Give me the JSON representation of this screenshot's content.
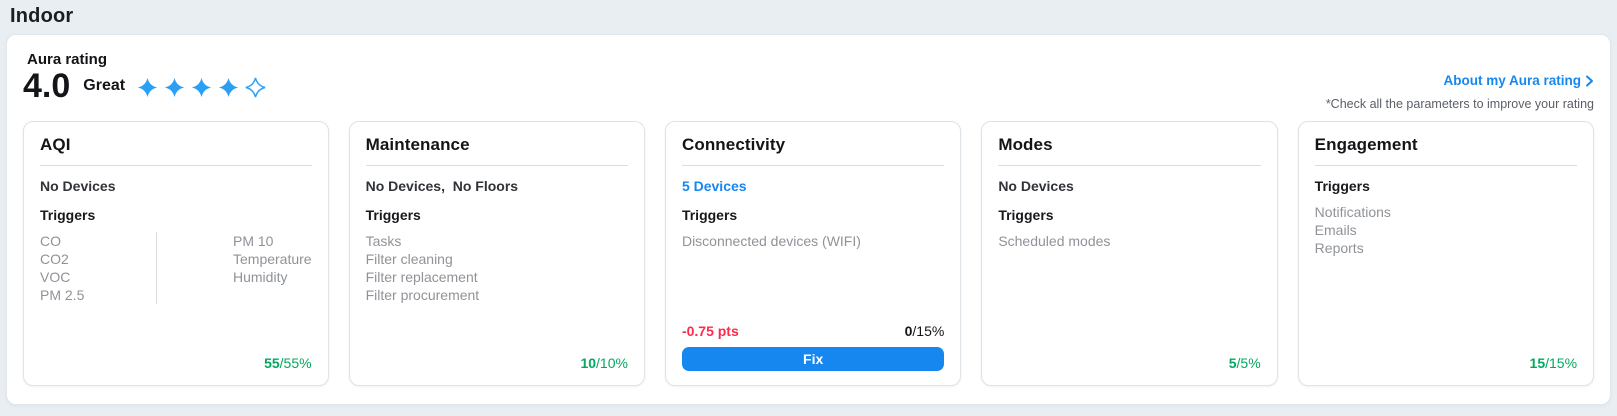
{
  "page": {
    "title": "Indoor"
  },
  "colors": {
    "accent_blue": "#1787F0",
    "star_blue": "#29A0F4",
    "success_green": "#00A95F",
    "danger_red": "#FB2B4B",
    "text_dark": "#17191C",
    "text_gray": "#8F9398"
  },
  "aura": {
    "label": "Aura rating",
    "score": "4.0",
    "grade": "Great",
    "stars_filled": 4,
    "stars_total": 5,
    "about_link": "About my Aura rating",
    "note": "*Check all the parameters to improve your rating"
  },
  "cards": [
    {
      "title": "AQI",
      "devices": "No Devices",
      "triggers_label": "Triggers",
      "triggers_col1": [
        "CO",
        "CO2",
        "VOC",
        "PM 2.5"
      ],
      "triggers_col2": [
        "PM 10",
        "Temperature",
        "Humidity"
      ],
      "score_value": "55",
      "score_total": "/55%"
    },
    {
      "title": "Maintenance",
      "devices": "No Devices,  No Floors",
      "triggers_label": "Triggers",
      "triggers": [
        "Tasks",
        "Filter cleaning",
        "Filter replacement",
        "Filter procurement"
      ],
      "score_value": "10",
      "score_total": "/10%"
    },
    {
      "title": "Connectivity",
      "devices": "5 Devices",
      "triggers_label": "Triggers",
      "triggers": [
        "Disconnected devices (WIFI)"
      ],
      "penalty": "-0.75 pts",
      "score_value": "0",
      "score_total": "/15%",
      "fix_label": "Fix"
    },
    {
      "title": "Modes",
      "devices": "No Devices",
      "triggers_label": "Triggers",
      "triggers": [
        "Scheduled modes"
      ],
      "score_value": "5",
      "score_total": "/5%"
    },
    {
      "title": "Engagement",
      "triggers_label": "Triggers",
      "triggers": [
        "Notifications",
        "Emails",
        "Reports"
      ],
      "score_value": "15",
      "score_total": "/15%"
    }
  ]
}
